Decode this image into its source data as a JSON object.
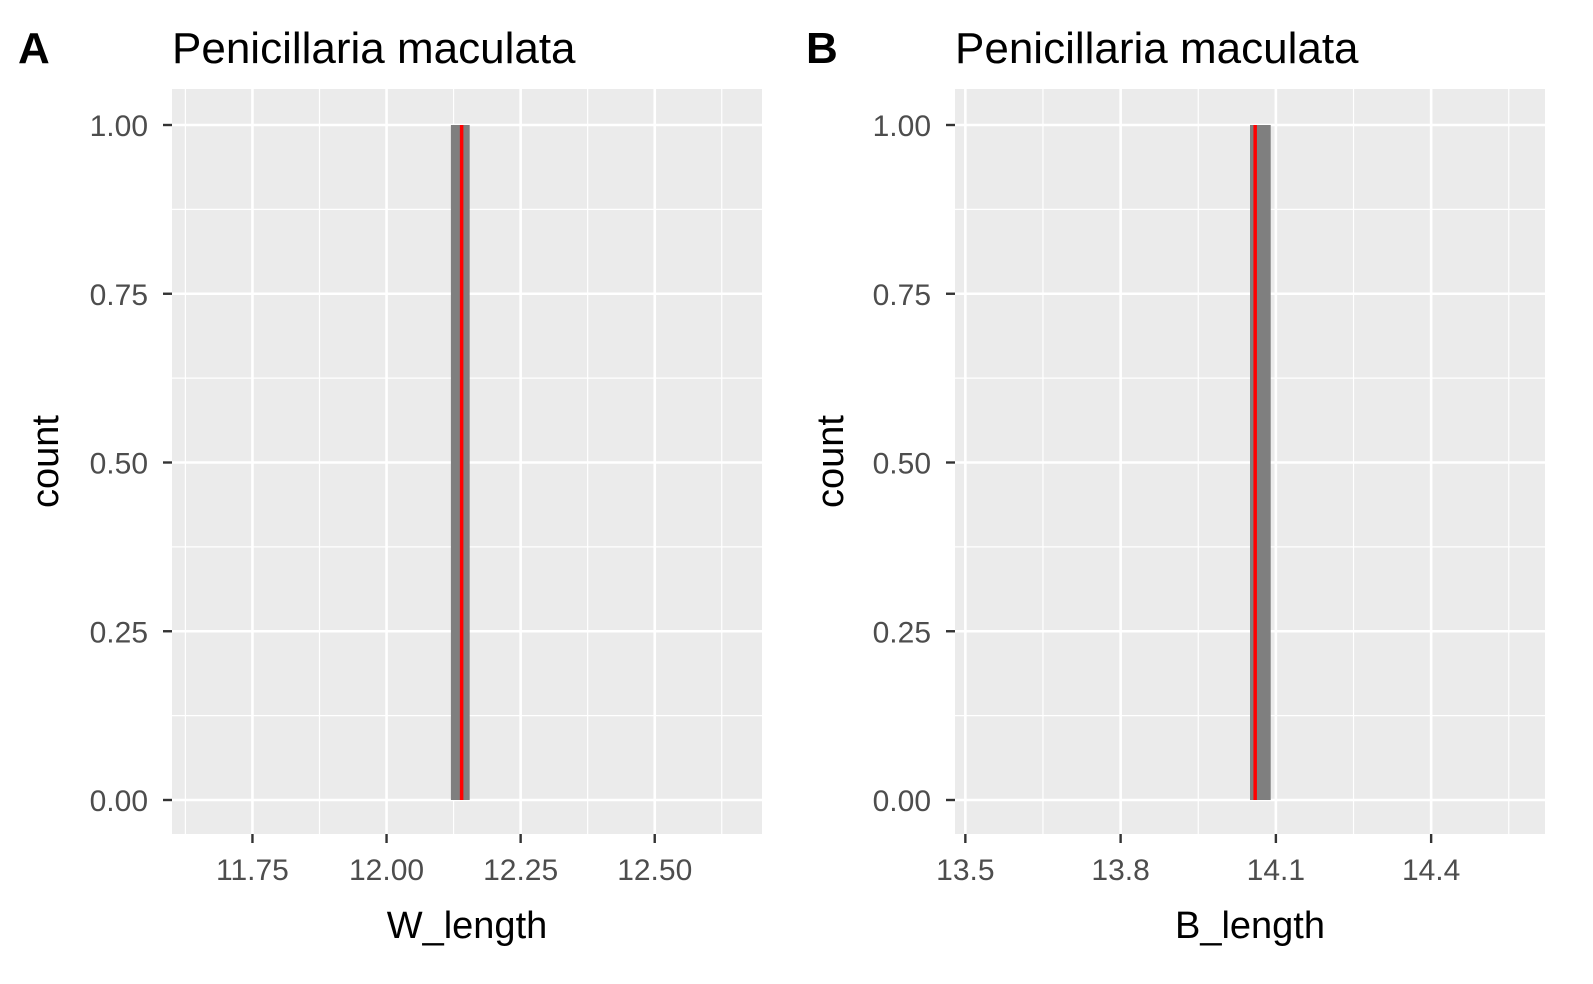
{
  "chart_data": [
    {
      "type": "histogram",
      "tag": "A",
      "title": "Penicillaria maculata",
      "xlabel": "W_length",
      "ylabel": "count",
      "xlim": [
        11.6,
        12.7
      ],
      "ylim": [
        0,
        1
      ],
      "xticks": [
        11.75,
        12.0,
        12.25,
        12.5
      ],
      "xtick_labels": [
        "11.75",
        "12.00",
        "12.25",
        "12.50"
      ],
      "yticks": [
        0,
        0.25,
        0.5,
        0.75,
        1.0
      ],
      "ytick_labels": [
        "0.00",
        "0.25",
        "0.50",
        "0.75",
        "1.00"
      ],
      "bins": [
        {
          "x_start": 12.12,
          "x_end": 12.155,
          "count": 1
        }
      ],
      "mean_line": 12.14,
      "grid": true
    },
    {
      "type": "histogram",
      "tag": "B",
      "title": "Penicillaria maculata",
      "xlabel": "B_length",
      "ylabel": "count",
      "xlim": [
        13.48,
        14.62
      ],
      "ylim": [
        0,
        1
      ],
      "xticks": [
        13.5,
        13.8,
        14.1,
        14.4
      ],
      "xtick_labels": [
        "13.5",
        "13.8",
        "14.1",
        "14.4"
      ],
      "yticks": [
        0,
        0.25,
        0.5,
        0.75,
        1.0
      ],
      "ytick_labels": [
        "0.00",
        "0.25",
        "0.50",
        "0.75",
        "1.00"
      ],
      "bins": [
        {
          "x_start": 14.05,
          "x_end": 14.09,
          "count": 1
        }
      ],
      "mean_line": 14.06,
      "grid": true
    }
  ],
  "colors": {
    "panel_bg": "#ebebeb",
    "grid": "#ffffff",
    "bar": "#7f7f7f",
    "mean_line": "#ff0000",
    "tick_text": "#4d4d4d"
  }
}
